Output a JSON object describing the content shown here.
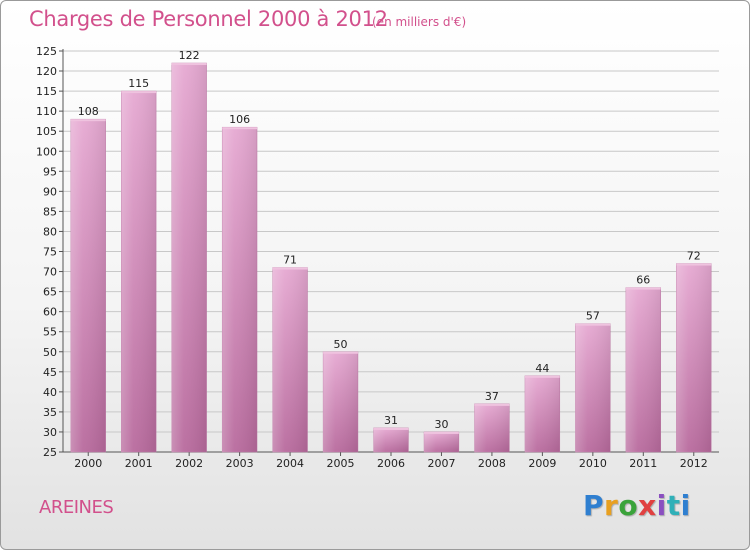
{
  "header": {
    "title": "Charges de Personnel 2000 à 2012",
    "unit": "(en milliers d'€)"
  },
  "footer": {
    "commune": "AREINES",
    "logo": [
      "P",
      "r",
      "o",
      "x",
      "i",
      "t",
      "i"
    ]
  },
  "colors": {
    "bar": "#d98cbf",
    "bar_light": "#e6a9d2",
    "bar_dark": "#b86a9d",
    "title": "#d2508c",
    "grid": "#c8c8c8"
  },
  "chart_data": {
    "type": "bar",
    "title": "Charges de Personnel 2000 à 2012",
    "subtitle": "(en milliers d'€)",
    "xlabel": "",
    "ylabel": "",
    "categories": [
      "2000",
      "2001",
      "2002",
      "2003",
      "2004",
      "2005",
      "2006",
      "2007",
      "2008",
      "2009",
      "2010",
      "2011",
      "2012"
    ],
    "values": [
      108,
      115,
      122,
      106,
      71,
      50,
      31,
      30,
      37,
      44,
      57,
      66,
      72
    ],
    "ylim": [
      25,
      125
    ],
    "yticks": [
      25,
      30,
      35,
      40,
      45,
      50,
      55,
      60,
      65,
      70,
      75,
      80,
      85,
      90,
      95,
      100,
      105,
      110,
      115,
      120,
      125
    ],
    "grid": true,
    "legend": "none"
  }
}
